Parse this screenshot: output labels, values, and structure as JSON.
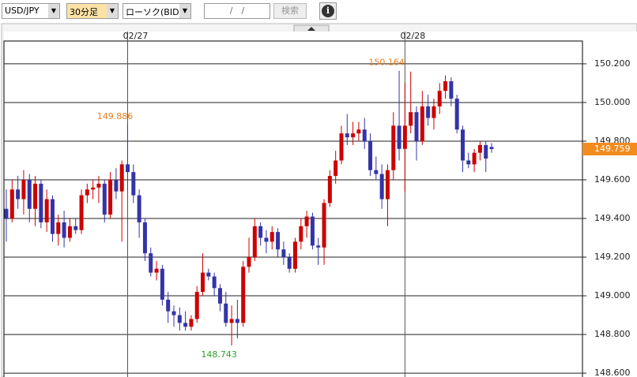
{
  "toolbar": {
    "pair": "USD/JPY",
    "interval": "30分足",
    "chart_kind": "ローソク(BID)",
    "date": "/　/",
    "search": "検索"
  },
  "chart_data": {
    "type": "candlestick",
    "categories": [
      null,
      null,
      null,
      null,
      null,
      null,
      null,
      null,
      null,
      null,
      null,
      null,
      null,
      null,
      null,
      null,
      null,
      null,
      null,
      null,
      null,
      "02/27",
      null,
      null,
      null,
      null,
      null,
      null,
      null,
      null,
      null,
      null,
      null,
      null,
      null,
      null,
      null,
      null,
      null,
      null,
      null,
      null,
      null,
      null,
      null,
      null,
      null,
      null,
      null,
      null,
      null,
      null,
      null,
      null,
      null,
      null,
      null,
      null,
      null,
      null,
      null,
      null,
      null,
      null,
      null,
      null,
      null,
      null,
      null,
      "02/28",
      null,
      null,
      null,
      null,
      null,
      null,
      null,
      null,
      null,
      null,
      null,
      null,
      null,
      null,
      null
    ],
    "open": [
      149.45,
      149.4,
      149.55,
      149.5,
      149.6,
      149.45,
      149.58,
      149.38,
      149.5,
      149.32,
      149.38,
      149.3,
      149.36,
      149.34,
      149.52,
      149.55,
      149.56,
      149.58,
      149.42,
      149.6,
      149.54,
      149.68,
      149.64,
      149.52,
      149.38,
      149.22,
      149.12,
      149.14,
      148.98,
      148.92,
      148.9,
      148.86,
      148.84,
      148.88,
      149.02,
      149.12,
      149.1,
      149.04,
      148.96,
      148.86,
      148.88,
      148.86,
      149.15,
      149.2,
      149.36,
      149.3,
      149.28,
      149.33,
      149.24,
      149.2,
      149.14,
      149.28,
      149.36,
      149.41,
      149.26,
      149.25,
      149.48,
      149.62,
      149.7,
      149.84,
      149.82,
      149.84,
      149.86,
      149.8,
      149.65,
      149.63,
      149.5,
      149.65,
      149.88,
      149.76,
      149.88,
      149.95,
      149.8,
      149.98,
      149.92,
      149.98,
      150.06,
      150.11,
      150.02,
      149.86,
      149.7,
      149.68,
      149.74,
      149.78,
      149.77
    ],
    "high": [
      149.55,
      149.6,
      149.62,
      149.65,
      149.63,
      149.62,
      149.6,
      149.55,
      149.52,
      149.42,
      149.44,
      149.4,
      149.4,
      149.55,
      149.58,
      149.6,
      149.62,
      149.6,
      149.64,
      149.66,
      149.7,
      149.886,
      149.68,
      149.55,
      149.4,
      149.25,
      149.18,
      149.16,
      149.02,
      148.95,
      148.94,
      148.92,
      148.9,
      149.05,
      149.22,
      149.14,
      149.12,
      149.06,
      149.02,
      148.95,
      148.98,
      149.18,
      149.3,
      149.4,
      149.38,
      149.34,
      149.36,
      149.35,
      149.28,
      149.22,
      149.3,
      149.4,
      149.44,
      149.43,
      149.3,
      149.5,
      149.65,
      149.75,
      149.88,
      149.94,
      149.9,
      149.9,
      149.92,
      149.84,
      149.72,
      149.68,
      149.68,
      149.95,
      150.164,
      150.1,
      150.16,
      149.98,
      150.06,
      150.04,
      150.02,
      150.1,
      150.14,
      150.13,
      150.04,
      149.88,
      149.74,
      149.76,
      149.8,
      149.8,
      149.79
    ],
    "low": [
      149.28,
      149.38,
      149.45,
      149.42,
      149.38,
      149.36,
      149.35,
      149.33,
      149.28,
      149.26,
      149.25,
      149.28,
      149.32,
      149.32,
      149.48,
      149.5,
      149.48,
      149.38,
      149.4,
      149.5,
      149.28,
      149.55,
      149.48,
      149.3,
      149.18,
      149.1,
      149.08,
      148.95,
      148.86,
      148.84,
      148.82,
      148.82,
      148.82,
      148.86,
      149.0,
      149.08,
      149.0,
      148.92,
      148.84,
      148.743,
      148.78,
      148.84,
      149.12,
      149.18,
      149.26,
      149.22,
      149.24,
      149.2,
      149.16,
      149.12,
      149.12,
      149.24,
      149.3,
      149.24,
      149.16,
      149.16,
      149.46,
      149.58,
      149.68,
      149.78,
      149.78,
      149.8,
      149.76,
      149.62,
      149.6,
      149.45,
      149.36,
      149.6,
      149.7,
      149.54,
      149.84,
      149.7,
      149.78,
      149.88,
      149.86,
      149.94,
      150.02,
      149.98,
      149.84,
      149.64,
      149.66,
      149.64,
      149.7,
      149.64,
      149.74
    ],
    "close": [
      149.4,
      149.55,
      149.5,
      149.6,
      149.45,
      149.58,
      149.38,
      149.5,
      149.32,
      149.38,
      149.3,
      149.36,
      149.34,
      149.52,
      149.55,
      149.56,
      149.58,
      149.42,
      149.6,
      149.54,
      149.68,
      149.64,
      149.52,
      149.38,
      149.22,
      149.12,
      149.14,
      148.98,
      148.92,
      148.9,
      148.86,
      148.84,
      148.88,
      149.02,
      149.12,
      149.1,
      149.04,
      148.96,
      148.86,
      148.88,
      148.86,
      149.15,
      149.2,
      149.36,
      149.3,
      149.28,
      149.33,
      149.24,
      149.2,
      149.14,
      149.28,
      149.36,
      149.41,
      149.26,
      149.25,
      149.48,
      149.62,
      149.7,
      149.84,
      149.82,
      149.84,
      149.86,
      149.8,
      149.65,
      149.63,
      149.5,
      149.65,
      149.88,
      149.76,
      149.88,
      149.95,
      149.8,
      149.98,
      149.92,
      149.98,
      150.06,
      150.11,
      150.02,
      149.86,
      149.7,
      149.68,
      149.74,
      149.78,
      149.71,
      149.759
    ],
    "up_color": "#cc0000",
    "down_color": "#3434a8",
    "ylim": [
      148.58,
      150.318
    ],
    "yticks": [
      {
        "value": 148.6,
        "label": "148.600"
      },
      {
        "value": 148.8,
        "label": "148.800"
      },
      {
        "value": 149,
        "label": "149.000"
      },
      {
        "value": 149.2,
        "label": "149.200"
      },
      {
        "value": 149.4,
        "label": "149.400"
      },
      {
        "value": 149.6,
        "label": "149.600"
      },
      {
        "value": 149.8,
        "label": "149.800"
      },
      {
        "value": 150,
        "label": "150.000"
      },
      {
        "value": 150.2,
        "label": "150.200"
      }
    ],
    "grid": true,
    "annotations": [
      {
        "value": 149.886,
        "color": "#e8801e"
      },
      {
        "value": 150.164,
        "color": "#e8801e"
      },
      {
        "value": 148.743,
        "color": "#2ca02c"
      }
    ],
    "current_price": 149.759,
    "current_color": "#f28c1e"
  }
}
